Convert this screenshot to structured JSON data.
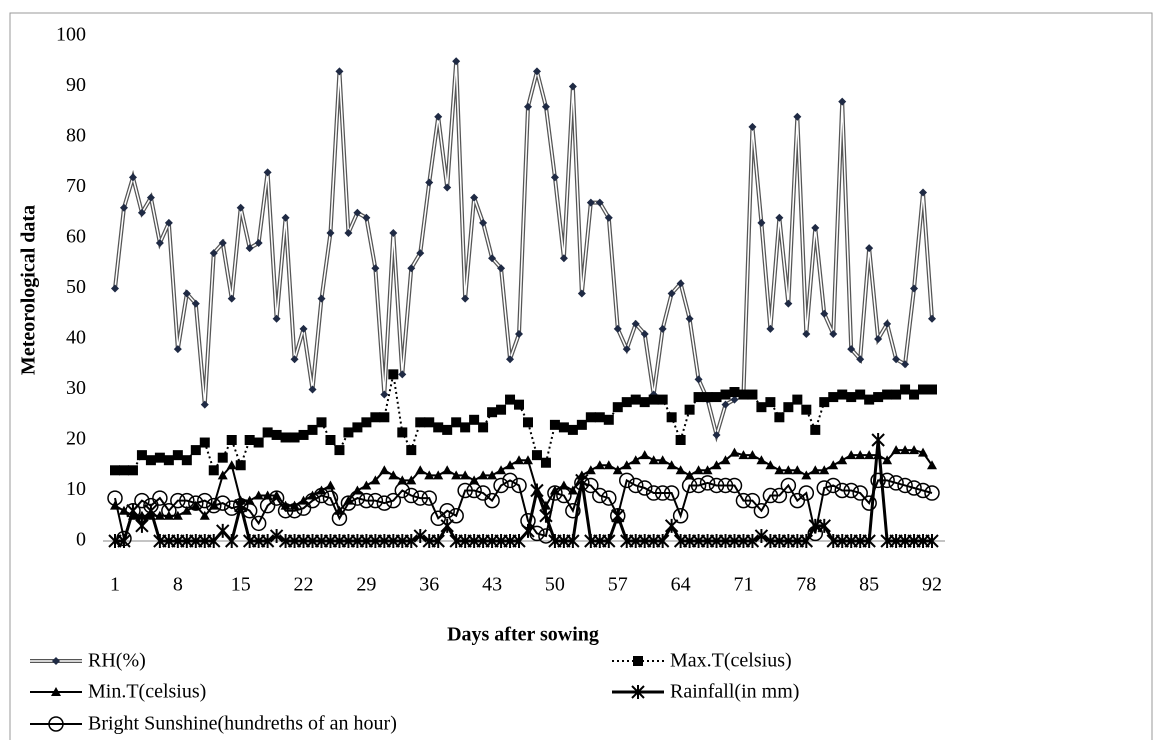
{
  "chart_data": {
    "type": "line",
    "xlabel": "Days after sowing",
    "ylabel": "Meteorological data",
    "x": [
      1,
      2,
      3,
      4,
      5,
      6,
      7,
      8,
      9,
      10,
      11,
      12,
      13,
      14,
      15,
      16,
      17,
      18,
      19,
      20,
      21,
      22,
      23,
      24,
      25,
      26,
      27,
      28,
      29,
      30,
      31,
      32,
      33,
      34,
      35,
      36,
      37,
      38,
      39,
      40,
      41,
      42,
      43,
      44,
      45,
      46,
      47,
      48,
      49,
      50,
      51,
      52,
      53,
      54,
      55,
      56,
      57,
      58,
      59,
      60,
      61,
      62,
      63,
      64,
      65,
      66,
      67,
      68,
      69,
      70,
      71,
      72,
      73,
      74,
      75,
      76,
      77,
      78,
      79,
      80,
      81,
      82,
      83,
      84,
      85,
      86,
      87,
      88,
      89,
      90,
      91,
      92
    ],
    "xlim": [
      1,
      92
    ],
    "xticks": [
      1,
      8,
      15,
      22,
      29,
      36,
      43,
      50,
      57,
      64,
      71,
      78,
      85,
      92
    ],
    "ylim": [
      0,
      100
    ],
    "yticks": [
      0,
      10,
      20,
      30,
      40,
      50,
      60,
      70,
      80,
      90,
      100
    ],
    "series": [
      {
        "name": "RH(%)",
        "color": "#555555",
        "marker": "diamond",
        "dash": "double",
        "values": [
          50,
          66,
          72,
          65,
          68,
          59,
          63,
          38,
          49,
          47,
          27,
          57,
          59,
          48,
          66,
          58,
          59,
          73,
          44,
          64,
          36,
          42,
          30,
          48,
          61,
          93,
          61,
          65,
          64,
          54,
          29,
          61,
          33,
          54,
          57,
          71,
          84,
          70,
          95,
          48,
          68,
          63,
          56,
          54,
          36,
          41,
          86,
          93,
          86,
          72,
          56,
          90,
          49,
          67,
          67,
          64,
          42,
          38,
          43,
          41,
          29,
          42,
          49,
          51,
          44,
          32,
          28,
          21,
          27,
          28,
          29,
          82,
          63,
          42,
          64,
          47,
          84,
          41,
          62,
          45,
          41,
          87,
          38,
          36,
          58,
          40,
          43,
          36,
          35,
          50,
          69,
          44
        ]
      },
      {
        "name": "Max.T(celsius)",
        "color": "#000000",
        "marker": "square",
        "dash": "dotted",
        "values": [
          14,
          14,
          14,
          17,
          16,
          16.5,
          16,
          17,
          16,
          18,
          19.5,
          14,
          16.5,
          20,
          15,
          20,
          19.5,
          21.5,
          21,
          20.5,
          20.5,
          21,
          22,
          23.5,
          20,
          18,
          21.5,
          22.5,
          23.5,
          24.5,
          24.5,
          33,
          21.5,
          18,
          23.5,
          23.5,
          22.5,
          22,
          23.5,
          22.5,
          24,
          22.5,
          25.5,
          26,
          28,
          27,
          23.5,
          17,
          15.5,
          23,
          22.5,
          22,
          23,
          24.5,
          24.5,
          24,
          26.5,
          27.5,
          28,
          27.5,
          28,
          28,
          24.5,
          20,
          26,
          28.5,
          28.5,
          28.5,
          29,
          29.5,
          29,
          29,
          26.5,
          27.5,
          24.5,
          26.5,
          28,
          26,
          22,
          27.5,
          28.5,
          29,
          28.5,
          29,
          28,
          28.5,
          29,
          29,
          30,
          29,
          30,
          30
        ]
      },
      {
        "name": "Min.T(celsius)",
        "color": "#000000",
        "marker": "triangle",
        "dash": "solid",
        "values": [
          7,
          6,
          5,
          5,
          5,
          5,
          5,
          5,
          6,
          7,
          5,
          7,
          13,
          15,
          8,
          8,
          9,
          9,
          9,
          7,
          7,
          8,
          9,
          10,
          11,
          6,
          8,
          10,
          11,
          12,
          14,
          13,
          12,
          12,
          14,
          13,
          13,
          14,
          13,
          13,
          12,
          13,
          13,
          14,
          15,
          16,
          16,
          10,
          7,
          10,
          11,
          10,
          13,
          14,
          15,
          15,
          14,
          15,
          16,
          17,
          16,
          16,
          15,
          14,
          13,
          14,
          14,
          15,
          16,
          17.5,
          17,
          17,
          16,
          15,
          14,
          14,
          14,
          13,
          14,
          14,
          15,
          16,
          17,
          17,
          17,
          17,
          16,
          18,
          18,
          18,
          17.5,
          15
        ]
      },
      {
        "name": "Rainfall(in mm)",
        "color": "#000000",
        "marker": "asterisk",
        "dash": "solid",
        "values": [
          0,
          0,
          6,
          3,
          6,
          0,
          0,
          0,
          0,
          0,
          0,
          0,
          2,
          0,
          7,
          0,
          0,
          0,
          1,
          0,
          0,
          0,
          0,
          0,
          0,
          0,
          0,
          0,
          0,
          0,
          0,
          0,
          0,
          0,
          1,
          0,
          0,
          3,
          0,
          0,
          0,
          0,
          0,
          0,
          0,
          0,
          2,
          10,
          5,
          0,
          0,
          0,
          12,
          0,
          0,
          0,
          5,
          0,
          0,
          0,
          0,
          0,
          3,
          0,
          0,
          0,
          0,
          0,
          0,
          0,
          0,
          0,
          1,
          0,
          0,
          0,
          0,
          0,
          3,
          3,
          0,
          0,
          0,
          0,
          0,
          20,
          0,
          0,
          0,
          0,
          0,
          0
        ]
      },
      {
        "name": "Bright Sunshine(hundreths of an hour)",
        "color": "#000000",
        "marker": "circle",
        "dash": "solid",
        "values": [
          8.5,
          0.5,
          6,
          8,
          7,
          8.5,
          6,
          8,
          8,
          7.5,
          8,
          7,
          7.5,
          6.5,
          7,
          6,
          3.5,
          7,
          8.5,
          6,
          6,
          6.5,
          8,
          9,
          8.5,
          4.5,
          7.5,
          8.5,
          8,
          8,
          7.5,
          8,
          10,
          9,
          8.5,
          8.5,
          4.5,
          6,
          5,
          10,
          10,
          9.5,
          8,
          11,
          12,
          11,
          4,
          1.5,
          1,
          9.5,
          9,
          6,
          11.5,
          11,
          9,
          8.5,
          5,
          12,
          11,
          10.5,
          9.5,
          9.5,
          9.5,
          5,
          11,
          11,
          11.5,
          11,
          11,
          11,
          8,
          8,
          6,
          9,
          9,
          11,
          8,
          9.5,
          1.5,
          10.5,
          11,
          10,
          10,
          9.5,
          7.5,
          12,
          12,
          11.5,
          11,
          10.5,
          10,
          9.5
        ]
      }
    ]
  }
}
